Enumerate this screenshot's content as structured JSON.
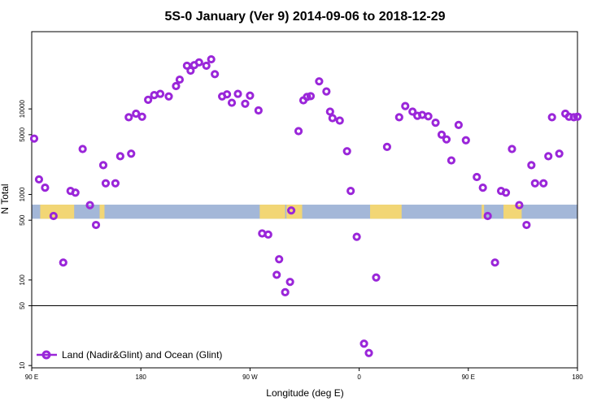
{
  "chart_data": {
    "type": "scatter",
    "title": "5S-0 January (Ver 9)   2014-09-06 to 2018-12-29",
    "xlabel": "Longitude (deg E)",
    "ylabel": "N Total",
    "y_scale": "log",
    "xlim": [
      90,
      540
    ],
    "ylim": [
      9.4,
      80000
    ],
    "x_ticks": [
      {
        "value": 90,
        "label": "90 E"
      },
      {
        "value": 180,
        "label": "180"
      },
      {
        "value": 270,
        "label": "90 W"
      },
      {
        "value": 360,
        "label": "0"
      },
      {
        "value": 450,
        "label": "90 E"
      },
      {
        "value": 540,
        "label": "180"
      }
    ],
    "y_ticks": [
      {
        "value": 10,
        "label": "10"
      },
      {
        "value": 50,
        "label": "50"
      },
      {
        "value": 100,
        "label": "100"
      },
      {
        "value": 500,
        "label": "500"
      },
      {
        "value": 1000,
        "label": "1000"
      },
      {
        "value": 5000,
        "label": "5000"
      },
      {
        "value": 10000,
        "label": "10000"
      }
    ],
    "reference_line": 50,
    "surface_band": {
      "y_range": [
        520,
        760
      ],
      "ocean_color": "#a3b7d8",
      "land_color": "#f2d675",
      "land_segments": [
        [
          97,
          125
        ],
        [
          146,
          150
        ],
        [
          278,
          299
        ],
        [
          301,
          313
        ],
        [
          300,
          306
        ],
        [
          369,
          395
        ],
        [
          461,
          463
        ],
        [
          479,
          494
        ]
      ]
    },
    "series": [
      {
        "name": "Land (Nadir&Glint) and Ocean (Glint)",
        "color": "#9a26d9",
        "x": [
          92,
          96,
          101,
          108,
          116,
          122,
          126,
          132,
          138,
          143,
          149,
          151,
          159,
          163,
          170,
          172,
          176,
          181,
          186,
          191,
          196,
          203,
          209,
          212,
          218,
          221,
          224,
          228,
          234,
          238,
          241,
          247,
          251,
          255,
          260,
          266,
          270,
          277,
          280,
          285,
          292,
          294,
          299,
          303,
          304,
          310,
          314,
          317,
          320,
          327,
          333,
          336,
          338,
          344,
          350,
          353,
          358,
          364,
          368,
          374,
          383,
          393,
          398,
          404,
          408,
          412,
          417,
          423,
          428,
          432,
          436,
          442,
          448,
          457,
          462,
          466,
          472,
          477,
          481,
          486,
          492,
          498,
          502,
          505,
          512,
          516,
          519,
          525,
          530,
          533,
          537,
          540
        ],
        "y": [
          4500,
          1500,
          1200,
          560,
          160,
          1100,
          1050,
          3400,
          750,
          440,
          2200,
          1350,
          1350,
          2800,
          8000,
          3000,
          8800,
          8100,
          12800,
          14500,
          15000,
          14000,
          18500,
          22000,
          32000,
          28000,
          32500,
          35000,
          32000,
          38000,
          25500,
          14000,
          14800,
          11800,
          15000,
          11500,
          14300,
          9600,
          350,
          340,
          115,
          175,
          72,
          95,
          650,
          5500,
          12600,
          13800,
          14100,
          21000,
          16000,
          9300,
          7800,
          7300,
          3200,
          1100,
          320,
          18,
          14,
          107,
          3600,
          8000,
          10800,
          9300,
          8300,
          8500,
          8200,
          6900,
          5000,
          4400,
          2500,
          6500,
          4300,
          1600,
          1200,
          560,
          160,
          1100,
          1050,
          3400,
          750,
          440,
          2200,
          1350,
          1350,
          2800,
          8000,
          3000,
          8800,
          8100,
          8000,
          8100
        ]
      }
    ],
    "legend_position": "bottom-left"
  }
}
